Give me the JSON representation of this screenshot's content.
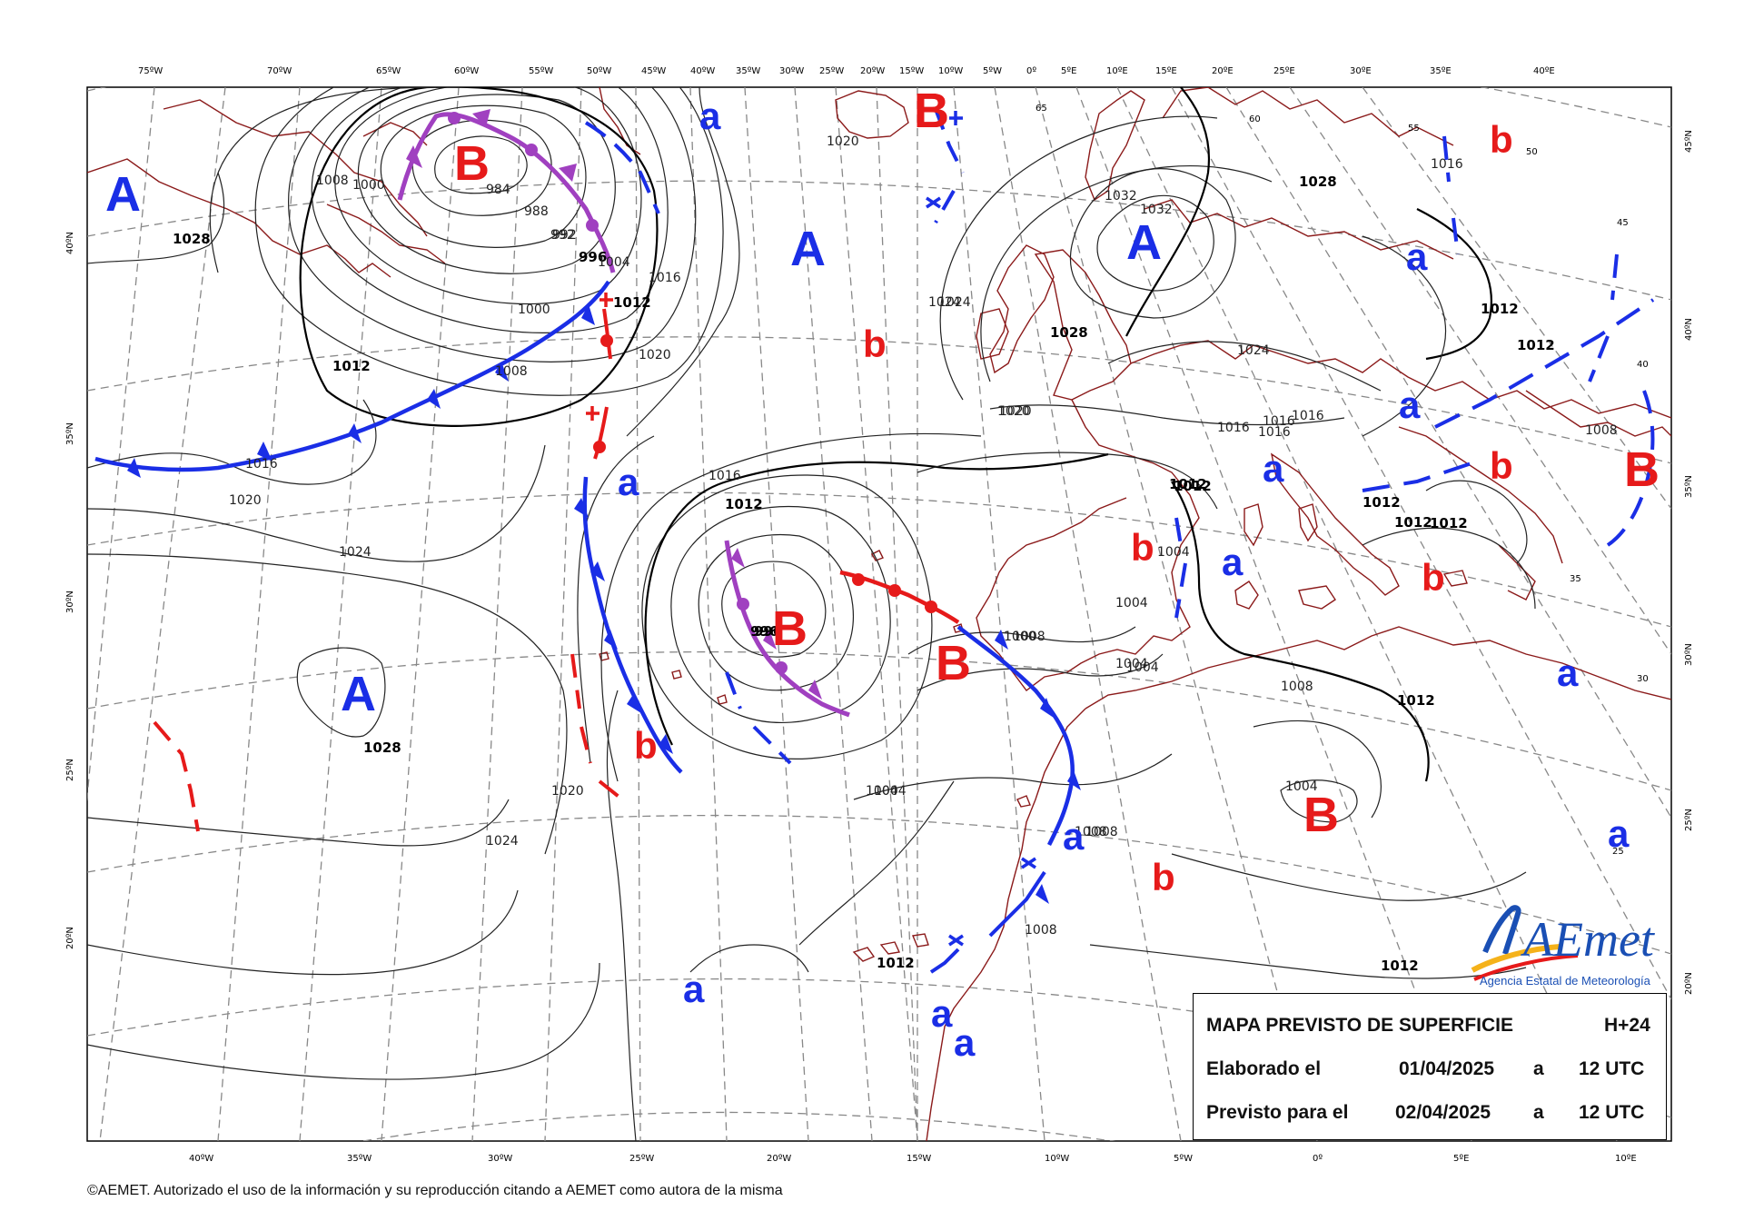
{
  "map": {
    "title": "MAPA PREVISTO DE SUPERFICIE",
    "lead": "H+24",
    "elaborado_label": "Elaborado el",
    "elaborado_date": "01/04/2025",
    "elaborado_a": "a",
    "elaborado_time": "12 UTC",
    "previsto_label": "Previsto para el",
    "previsto_date": "02/04/2025",
    "previsto_a": "a",
    "previsto_time": "12 UTC",
    "copyright": "©AEMET. Autorizado el uso de la información y su reproducción citando a AEMET como autora de la misma",
    "logo_text": "AEmet",
    "logo_subtitle": "Agencia Estatal de Meteorología",
    "colors": {
      "high": "#1a2ee6",
      "low": "#e61a1a",
      "occluded": "#a040c0",
      "cold_front": "#1a2ee6",
      "warm_front": "#e61a1a",
      "coast": "#8b1a1a",
      "isobar": "#222222"
    },
    "top_labels": [
      "75ºW",
      "70ºW",
      "65ºW",
      "60ºW",
      "55ºW",
      "50ºW",
      "45ºW",
      "40ºW",
      "35ºW",
      "30ºW",
      "25ºW",
      "20ºW",
      "15ºW",
      "10ºW",
      "5ºW",
      "0º",
      "5ºE",
      "10ºE",
      "15ºE",
      "20ºE",
      "25ºE",
      "30ºE",
      "35ºE",
      "40ºE"
    ],
    "bottom_labels": [
      "40ºW",
      "35ºW",
      "30ºW",
      "25ºW",
      "20ºW",
      "15ºW",
      "10ºW",
      "5ºW",
      "0º",
      "5ºE",
      "10ºE"
    ],
    "left_labels": [
      "40ºN",
      "35ºN",
      "30ºN",
      "25ºN",
      "20ºN"
    ],
    "right_labels": [
      "45ºN",
      "40ºN",
      "35ºN",
      "30ºN",
      "25ºN",
      "20ºN"
    ],
    "inner_lat_labels": [
      "55",
      "50",
      "45",
      "40",
      "35",
      "30",
      "25",
      "65",
      "60"
    ],
    "isobar_labels": [
      "1028",
      "1008",
      "1000",
      "984",
      "988",
      "992",
      "996",
      "1004",
      "1016",
      "1012",
      "1020",
      "1000",
      "1008",
      "1012",
      "1016",
      "1020",
      "1024",
      "1024",
      "1020",
      "1028",
      "1016",
      "1012",
      "1004",
      "996",
      "1004",
      "1004",
      "1008",
      "1024",
      "1020",
      "1016",
      "1012",
      "1008",
      "1016",
      "1012",
      "1024",
      "1020",
      "1016",
      "1016",
      "1012",
      "1020",
      "1028",
      "1032",
      "1032",
      "1028",
      "1024",
      "1016",
      "1012",
      "1012",
      "1004",
      "1004",
      "1000",
      "1008",
      "1004",
      "1012",
      "1012",
      "1012",
      "1004",
      "1008",
      "1012",
      "1008",
      "1012",
      "1008",
      "996",
      "992"
    ],
    "pressure_centers": [
      {
        "type": "high",
        "label": "A"
      },
      {
        "type": "low",
        "label": "B"
      },
      {
        "type": "high",
        "label": "A"
      },
      {
        "type": "low",
        "label": "B"
      },
      {
        "type": "high",
        "label": "A"
      },
      {
        "type": "high",
        "label": "A"
      },
      {
        "type": "low",
        "label": "B"
      },
      {
        "type": "low",
        "label": "B"
      },
      {
        "type": "low",
        "label": "B"
      },
      {
        "type": "low",
        "label": "B"
      },
      {
        "type": "low",
        "label": "B"
      }
    ],
    "minor_centers": [
      {
        "type": "high",
        "label": "a"
      },
      {
        "type": "high",
        "label": "a"
      },
      {
        "type": "high",
        "label": "a"
      },
      {
        "type": "high",
        "label": "a"
      },
      {
        "type": "high",
        "label": "a"
      },
      {
        "type": "high",
        "label": "a"
      },
      {
        "type": "high",
        "label": "a"
      },
      {
        "type": "high",
        "label": "a"
      },
      {
        "type": "high",
        "label": "a"
      },
      {
        "type": "high",
        "label": "a"
      },
      {
        "type": "high",
        "label": "a"
      },
      {
        "type": "high",
        "label": "a"
      },
      {
        "type": "low",
        "label": "b"
      },
      {
        "type": "low",
        "label": "b"
      },
      {
        "type": "low",
        "label": "b"
      },
      {
        "type": "low",
        "label": "b"
      },
      {
        "type": "low",
        "label": "b"
      },
      {
        "type": "low",
        "label": "b"
      },
      {
        "type": "low",
        "label": "b"
      }
    ]
  }
}
